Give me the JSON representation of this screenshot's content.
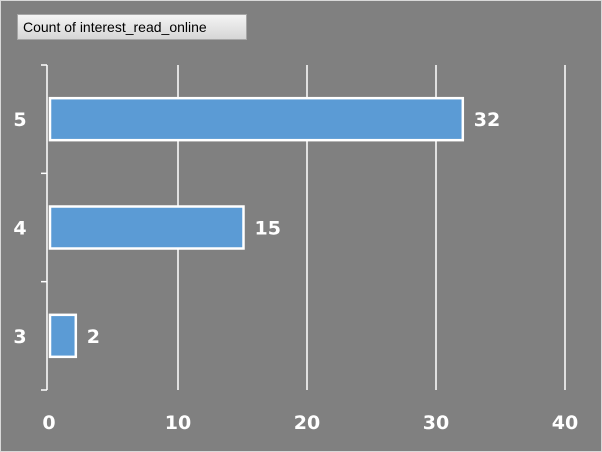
{
  "field_button": {
    "label": "Count of interest_read_online"
  },
  "colors": {
    "background": "#808080",
    "bar": "#5b9bd5",
    "bar_outline": "#ffffff",
    "gridline": "#ffffff",
    "text": "#ffffff"
  },
  "chart_data": {
    "type": "bar",
    "orientation": "horizontal",
    "categories": [
      "5",
      "4",
      "3"
    ],
    "series": [
      {
        "values": [
          32,
          15,
          2
        ]
      }
    ],
    "xlim": [
      0,
      40
    ],
    "x_ticks": [
      0,
      10,
      20,
      30,
      40
    ],
    "grid": true,
    "legend": false,
    "data_labels": true
  }
}
